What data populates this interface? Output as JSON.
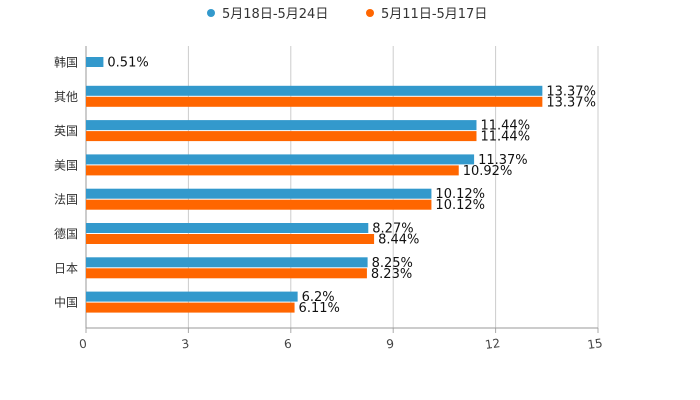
{
  "chart_data": {
    "type": "bar",
    "orientation": "horizontal",
    "categories": [
      "韩国",
      "其他",
      "英国",
      "美国",
      "法国",
      "德国",
      "日本",
      "中国"
    ],
    "series": [
      {
        "name": "5月18日-5月24日",
        "color": "#3399cc",
        "values": [
          0.51,
          13.37,
          11.44,
          11.37,
          10.12,
          8.27,
          8.25,
          6.2
        ],
        "labels": [
          "0.51%",
          "13.37%",
          "11.44%",
          "11.37%",
          "10.12%",
          "8.27%",
          "8.25%",
          "6.2%"
        ]
      },
      {
        "name": "5月11日-5月17日",
        "color": "#ff6600",
        "values": [
          null,
          13.37,
          11.44,
          10.92,
          10.12,
          8.44,
          8.23,
          6.11
        ],
        "labels": [
          null,
          "13.37%",
          "11.44%",
          "10.92%",
          "10.12%",
          "8.44%",
          "8.23%",
          "6.11%"
        ]
      }
    ],
    "xlim": [
      0,
      15
    ],
    "xticks": [
      0,
      3,
      6,
      9,
      12,
      15
    ],
    "xtick_labels": [
      "0",
      "3",
      "6",
      "9",
      "12",
      "15"
    ],
    "grid": true,
    "legend": "top-center",
    "title": "",
    "xlabel": "",
    "ylabel": ""
  }
}
